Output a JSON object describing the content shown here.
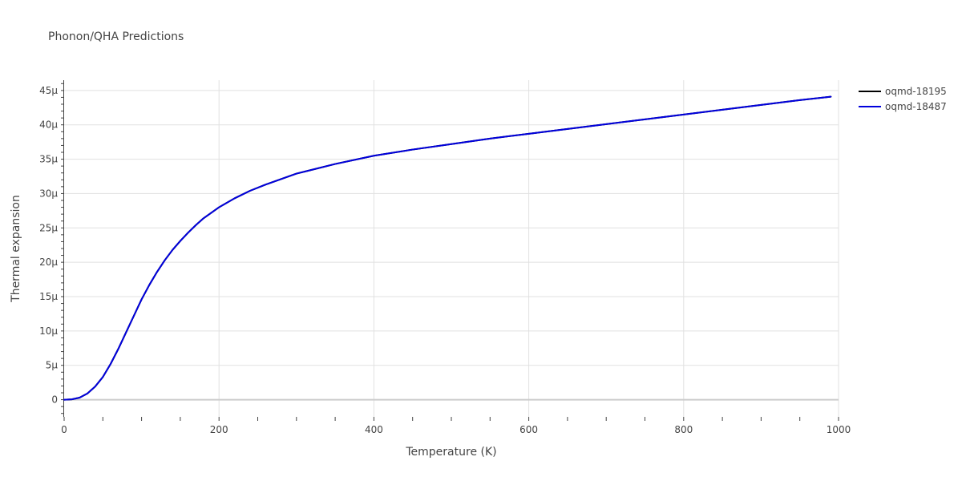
{
  "chart_data": {
    "type": "line",
    "title": "Phonon/QHA Predictions",
    "xlabel": "Temperature (K)",
    "ylabel": "Thermal expansion",
    "xlim": [
      0,
      1000
    ],
    "ylim": [
      -2.5,
      46.5
    ],
    "grid": true,
    "legend_position": "top-right",
    "x_ticks": [
      0,
      200,
      400,
      600,
      800,
      1000
    ],
    "x_tick_labels": [
      "0",
      "200",
      "400",
      "600",
      "800",
      "1000"
    ],
    "y_ticks": [
      0,
      5,
      10,
      15,
      20,
      25,
      30,
      35,
      40,
      45
    ],
    "y_tick_labels": [
      "0",
      "5μ",
      "10μ",
      "15μ",
      "20μ",
      "25μ",
      "30μ",
      "35μ",
      "40μ",
      "45μ"
    ],
    "series": [
      {
        "name": "oqmd-18195",
        "color": "#000000",
        "x": [
          0,
          10,
          20,
          30,
          40,
          50,
          60,
          70,
          80,
          90,
          100,
          110,
          120,
          130,
          140,
          150,
          160,
          170,
          180,
          190,
          200,
          220,
          240,
          260,
          280,
          300,
          350,
          400,
          450,
          500,
          550,
          600,
          650,
          700,
          750,
          800,
          850,
          900,
          950,
          990
        ],
        "y": [
          0,
          0.05,
          0.3,
          0.9,
          1.9,
          3.3,
          5.2,
          7.4,
          9.8,
          12.2,
          14.6,
          16.7,
          18.6,
          20.3,
          21.8,
          23.1,
          24.3,
          25.4,
          26.4,
          27.2,
          28.0,
          29.3,
          30.4,
          31.3,
          32.1,
          32.9,
          34.3,
          35.5,
          36.4,
          37.2,
          38.0,
          38.7,
          39.4,
          40.1,
          40.8,
          41.5,
          42.2,
          42.9,
          43.6,
          44.1
        ]
      },
      {
        "name": "oqmd-18487",
        "color": "#0000dd",
        "x": [
          0,
          10,
          20,
          30,
          40,
          50,
          60,
          70,
          80,
          90,
          100,
          110,
          120,
          130,
          140,
          150,
          160,
          170,
          180,
          190,
          200,
          220,
          240,
          260,
          280,
          300,
          350,
          400,
          450,
          500,
          550,
          600,
          650,
          700,
          750,
          800,
          850,
          900,
          950,
          990
        ],
        "y": [
          0,
          0.05,
          0.3,
          0.9,
          1.9,
          3.3,
          5.2,
          7.4,
          9.8,
          12.2,
          14.6,
          16.7,
          18.6,
          20.3,
          21.8,
          23.1,
          24.3,
          25.4,
          26.4,
          27.2,
          28.0,
          29.3,
          30.4,
          31.3,
          32.1,
          32.9,
          34.3,
          35.5,
          36.4,
          37.2,
          38.0,
          38.7,
          39.4,
          40.1,
          40.8,
          41.5,
          42.2,
          42.9,
          43.6,
          44.1
        ]
      }
    ]
  }
}
